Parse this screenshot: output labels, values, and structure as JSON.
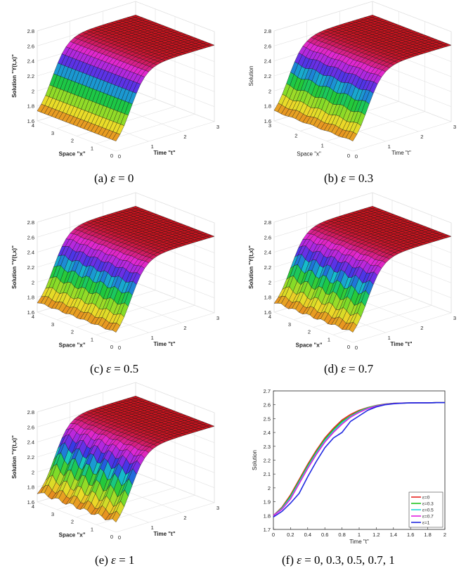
{
  "surface_panels": [
    {
      "id": "a",
      "caption_prefix": "(a)",
      "eps_symbol": "ε",
      "caption_value": "= 0",
      "zlabel": "Solution \"Y(t,x)\"",
      "xlabel": "Space \"x\"",
      "tlabel": "Time \"t\"",
      "ztick_labels": [
        "1.6",
        "1.8",
        "2",
        "2.2",
        "2.4",
        "2.6",
        "2.8"
      ],
      "xtick_labels": [
        "4",
        "3",
        "2",
        "1",
        "0"
      ],
      "ttick_labels": [
        "0",
        "1",
        "2",
        "3"
      ],
      "epsilon": 0,
      "ripple": 0.0
    },
    {
      "id": "b",
      "caption_prefix": "(b)",
      "eps_symbol": "ε",
      "caption_value": "= 0.3",
      "zlabel": "Solution",
      "xlabel": "Space \"x\"",
      "tlabel": "Time \"t\"",
      "ztick_labels": [
        "1.6",
        "1.8",
        "2",
        "2.2",
        "2.4",
        "2.6",
        "2.8"
      ],
      "xtick_labels": [
        "3",
        "2",
        "1",
        "0"
      ],
      "ttick_labels": [
        "0",
        "1",
        "2",
        "3"
      ],
      "epsilon": 0.3,
      "ripple": 0.02
    },
    {
      "id": "c",
      "caption_prefix": "(c)",
      "eps_symbol": "ε",
      "caption_value": "= 0.5",
      "zlabel": "Solution \"Y(t,x)\"",
      "xlabel": "Space \"x\"",
      "tlabel": "Time \"t\"",
      "ztick_labels": [
        "1.6",
        "1.8",
        "2",
        "2.2",
        "2.4",
        "2.6",
        "2.8"
      ],
      "xtick_labels": [
        "4",
        "3",
        "2",
        "1",
        "0"
      ],
      "ttick_labels": [
        "0",
        "1",
        "2",
        "3"
      ],
      "epsilon": 0.5,
      "ripple": 0.03
    },
    {
      "id": "d",
      "caption_prefix": "(d)",
      "eps_symbol": "ε",
      "caption_value": "= 0.7",
      "zlabel": "Solution \"Y(t,x)\"",
      "xlabel": "Space \"x\"",
      "tlabel": "Time \"t\"",
      "ztick_labels": [
        "1.6",
        "1.8",
        "2",
        "2.2",
        "2.4",
        "2.6",
        "2.8"
      ],
      "xtick_labels": [
        "4",
        "3",
        "2",
        "1",
        "0"
      ],
      "ttick_labels": [
        "0",
        "1",
        "2",
        "3"
      ],
      "epsilon": 0.7,
      "ripple": 0.045
    },
    {
      "id": "e",
      "caption_prefix": "(e)",
      "eps_symbol": "ε",
      "caption_value": "= 1",
      "zlabel": "Solution \"Y(t,x)\"",
      "xlabel": "Space \"x\"",
      "tlabel": "Time \"t\"",
      "ztick_labels": [
        "1.6",
        "1.8",
        "2",
        "2.2",
        "2.4",
        "2.6",
        "2.8"
      ],
      "xtick_labels": [
        "4",
        "3",
        "2",
        "1",
        "0"
      ],
      "ttick_labels": [
        "0",
        "1",
        "2",
        "3"
      ],
      "epsilon": 1,
      "ripple": 0.07
    }
  ],
  "line_panel": {
    "caption_prefix": "(f)",
    "eps_symbol": "ε",
    "caption_value": "= 0,  0.3,  0.5,  0.7,  1"
  },
  "chart_data": [
    {
      "type": "surface",
      "title": "(a) ε = 0",
      "xlabel": "Space \"x\"",
      "ylabel": "Time \"t\"",
      "zlabel": "Solution \"Y(t,x)\"",
      "x_range": [
        0,
        4
      ],
      "t_range": [
        0,
        3
      ],
      "z_range": [
        1.6,
        2.8
      ],
      "description_values": {
        "start": 1.6,
        "end": 2.62
      }
    },
    {
      "type": "surface",
      "title": "(b) ε = 0.3",
      "xlabel": "Space \"x\"",
      "ylabel": "Time \"t\"",
      "zlabel": "Solution",
      "x_range": [
        0,
        3
      ],
      "t_range": [
        0,
        3
      ],
      "z_range": [
        1.6,
        2.8
      ],
      "description_values": {
        "start": 1.6,
        "end": 2.62
      }
    },
    {
      "type": "surface",
      "title": "(c) ε = 0.5",
      "xlabel": "Space \"x\"",
      "ylabel": "Time \"t\"",
      "zlabel": "Solution \"Y(t,x)\"",
      "x_range": [
        0,
        4
      ],
      "t_range": [
        0,
        3
      ],
      "z_range": [
        1.6,
        2.8
      ],
      "description_values": {
        "start": 1.6,
        "end": 2.62
      }
    },
    {
      "type": "surface",
      "title": "(d) ε = 0.7",
      "xlabel": "Space \"x\"",
      "ylabel": "Time \"t\"",
      "zlabel": "Solution \"Y(t,x)\"",
      "x_range": [
        0,
        4
      ],
      "t_range": [
        0,
        3
      ],
      "z_range": [
        1.6,
        2.8
      ],
      "description_values": {
        "start": 1.6,
        "end": 2.62
      }
    },
    {
      "type": "surface",
      "title": "(e) ε = 1",
      "xlabel": "Space \"x\"",
      "ylabel": "Time \"t\"",
      "zlabel": "Solution \"Y(t,x)\"",
      "x_range": [
        0,
        4
      ],
      "t_range": [
        0,
        3
      ],
      "z_range": [
        1.6,
        2.8
      ],
      "description_values": {
        "start": 1.6,
        "end": 2.62
      }
    },
    {
      "type": "line",
      "title": "(f) ε = 0, 0.3, 0.5, 0.7, 1",
      "xlabel": "Time \"t\"",
      "ylabel": "Solution",
      "xlim": [
        0,
        2
      ],
      "ylim": [
        1.7,
        2.7
      ],
      "xtick_labels": [
        "0",
        "0.2",
        "0.4",
        "0.6",
        "0.8",
        "1",
        "1.2",
        "1.4",
        "1.6",
        "1.8",
        "2"
      ],
      "ytick_labels": [
        "1.7",
        "1.8",
        "1.9",
        "2",
        "2.1",
        "2.2",
        "2.3",
        "2.4",
        "2.5",
        "2.6",
        "2.7"
      ],
      "legend_position": "bottom-right",
      "x": [
        0,
        0.1,
        0.2,
        0.3,
        0.4,
        0.5,
        0.6,
        0.7,
        0.8,
        0.9,
        1.0,
        1.1,
        1.2,
        1.3,
        1.4,
        1.5,
        1.6,
        1.7,
        1.8,
        1.9,
        2.0
      ],
      "series": [
        {
          "name": "ε=0",
          "color": "#e8231f",
          "values": [
            1.8,
            1.86,
            1.95,
            2.06,
            2.17,
            2.27,
            2.36,
            2.43,
            2.49,
            2.53,
            2.56,
            2.58,
            2.595,
            2.605,
            2.61,
            2.612,
            2.613,
            2.614,
            2.614,
            2.615,
            2.615
          ]
        },
        {
          "name": "ε=0.3",
          "color": "#1fc41f",
          "values": [
            1.8,
            1.855,
            1.94,
            2.05,
            2.16,
            2.26,
            2.35,
            2.42,
            2.48,
            2.52,
            2.555,
            2.578,
            2.594,
            2.604,
            2.61,
            2.612,
            2.613,
            2.614,
            2.614,
            2.615,
            2.615
          ]
        },
        {
          "name": "ε=0.5",
          "color": "#1fd6d6",
          "values": [
            1.8,
            1.85,
            1.93,
            2.04,
            2.15,
            2.25,
            2.34,
            2.41,
            2.47,
            2.515,
            2.55,
            2.575,
            2.592,
            2.603,
            2.609,
            2.612,
            2.613,
            2.614,
            2.614,
            2.615,
            2.615
          ]
        },
        {
          "name": "ε=0.7",
          "color": "#e020e0",
          "values": [
            1.8,
            1.845,
            1.92,
            2.03,
            2.14,
            2.24,
            2.33,
            2.4,
            2.46,
            2.51,
            2.545,
            2.572,
            2.59,
            2.602,
            2.609,
            2.612,
            2.613,
            2.614,
            2.614,
            2.615,
            2.615
          ]
        },
        {
          "name": "ε=1",
          "color": "#1f28e0",
          "values": [
            1.79,
            1.83,
            1.89,
            1.96,
            2.08,
            2.19,
            2.29,
            2.36,
            2.4,
            2.48,
            2.52,
            2.56,
            2.585,
            2.6,
            2.607,
            2.611,
            2.613,
            2.614,
            2.614,
            2.615,
            2.615
          ]
        }
      ]
    }
  ]
}
